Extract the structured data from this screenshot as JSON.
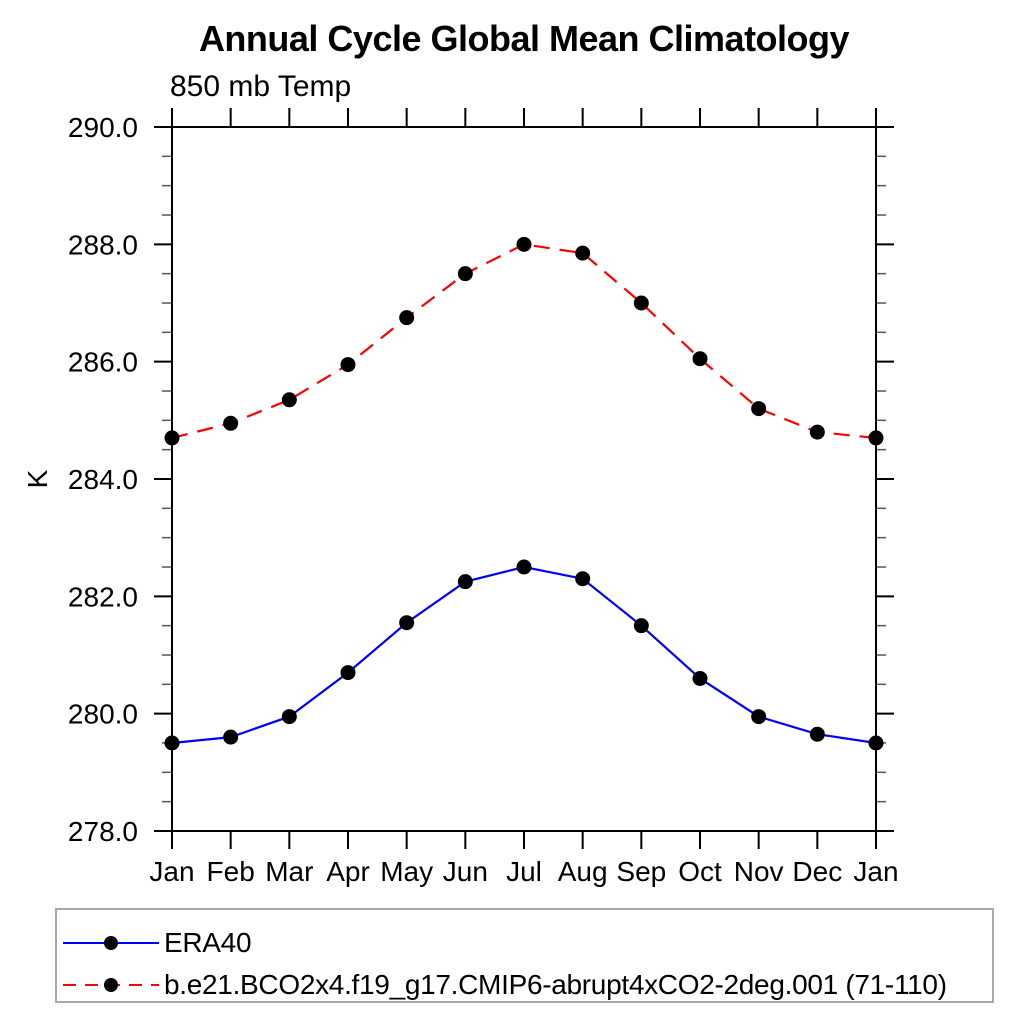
{
  "page": {
    "background_color": "#ffffff",
    "text_color": "#000000"
  },
  "chart": {
    "title": "Annual Cycle Global Mean Climatology",
    "subtitle": "850 mb Temp",
    "ylabel": "K"
  },
  "chart_data": {
    "type": "line",
    "title": "Annual Cycle Global Mean Climatology",
    "subtitle": "850 mb Temp",
    "xlabel": "",
    "ylabel": "K",
    "categories": [
      "Jan",
      "Feb",
      "Mar",
      "Apr",
      "May",
      "Jun",
      "Jul",
      "Aug",
      "Sep",
      "Oct",
      "Nov",
      "Dec",
      "Jan"
    ],
    "series": [
      {
        "name": "ERA40",
        "color": "#0000ff",
        "line_style": "solid",
        "marker": "filled-circle",
        "marker_color": "#000000",
        "values": [
          279.5,
          279.6,
          279.95,
          280.7,
          281.55,
          282.25,
          282.5,
          282.3,
          281.5,
          280.6,
          279.95,
          279.65,
          279.5
        ]
      },
      {
        "name": "b.e21.BCO2x4.f19_g17.CMIP6-abrupt4xCO2-2deg.001 (71-110)",
        "color": "#ff0000",
        "line_style": "dashed",
        "marker": "filled-circle",
        "marker_color": "#000000",
        "values": [
          284.7,
          284.95,
          285.35,
          285.95,
          286.75,
          287.5,
          288.0,
          287.85,
          287.0,
          286.05,
          285.2,
          284.8,
          284.7
        ]
      }
    ],
    "ylim": [
      278.0,
      290.0
    ],
    "y_major_ticks": [
      278,
      280,
      282,
      284,
      286,
      288,
      290
    ],
    "y_tick_labels": [
      "278.0",
      "280.0",
      "282.0",
      "284.0",
      "286.0",
      "288.0",
      "290.0"
    ],
    "y_minor_step": 0.5,
    "grid": false,
    "legend_position": "bottom",
    "axis_color": "#000000",
    "minor_tick_color": "#555555"
  }
}
